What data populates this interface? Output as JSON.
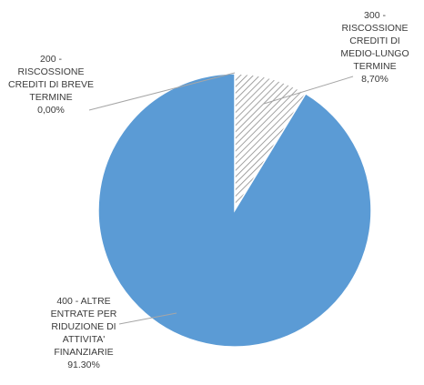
{
  "chart_data": {
    "type": "pie",
    "title": "",
    "slices": [
      {
        "label": "200 - RISCOSSIONE CREDITI DI BREVE TERMINE",
        "value": 0.0,
        "value_text": "0,00%",
        "label_lines": [
          "200 -",
          "RISCOSSIONE",
          "CREDITI DI BREVE",
          "TERMINE",
          "0,00%"
        ],
        "fill": "#ffffff",
        "pattern": "none"
      },
      {
        "label": "300 - RISCOSSIONE CREDITI DI MEDIO-LUNGO TERMINE",
        "value": 8.7,
        "value_text": "8,70%",
        "label_lines": [
          "300 -",
          "RISCOSSIONE",
          "CREDITI DI",
          "MEDIO-LUNGO",
          "TERMINE",
          "8,70%"
        ],
        "fill": "#ffffff",
        "pattern": "diagonal-hatch",
        "pattern_color": "#8c8c8c"
      },
      {
        "label": "400 - ALTRE ENTRATE PER RIDUZIONE DI ATTIVITA' FINANZIARIE",
        "value": 91.3,
        "value_text": "91.30%",
        "label_lines": [
          "400 - ALTRE",
          "ENTRATE PER",
          "RIDUZIONE DI",
          "ATTIVITA'",
          "FINANZIARIE",
          "91.30%"
        ],
        "fill": "#5b9bd5",
        "pattern": "solid"
      }
    ],
    "start_angle_deg": 0,
    "direction": "clockwise",
    "legend": "none",
    "data_labels": "outside-with-leader-lines"
  }
}
